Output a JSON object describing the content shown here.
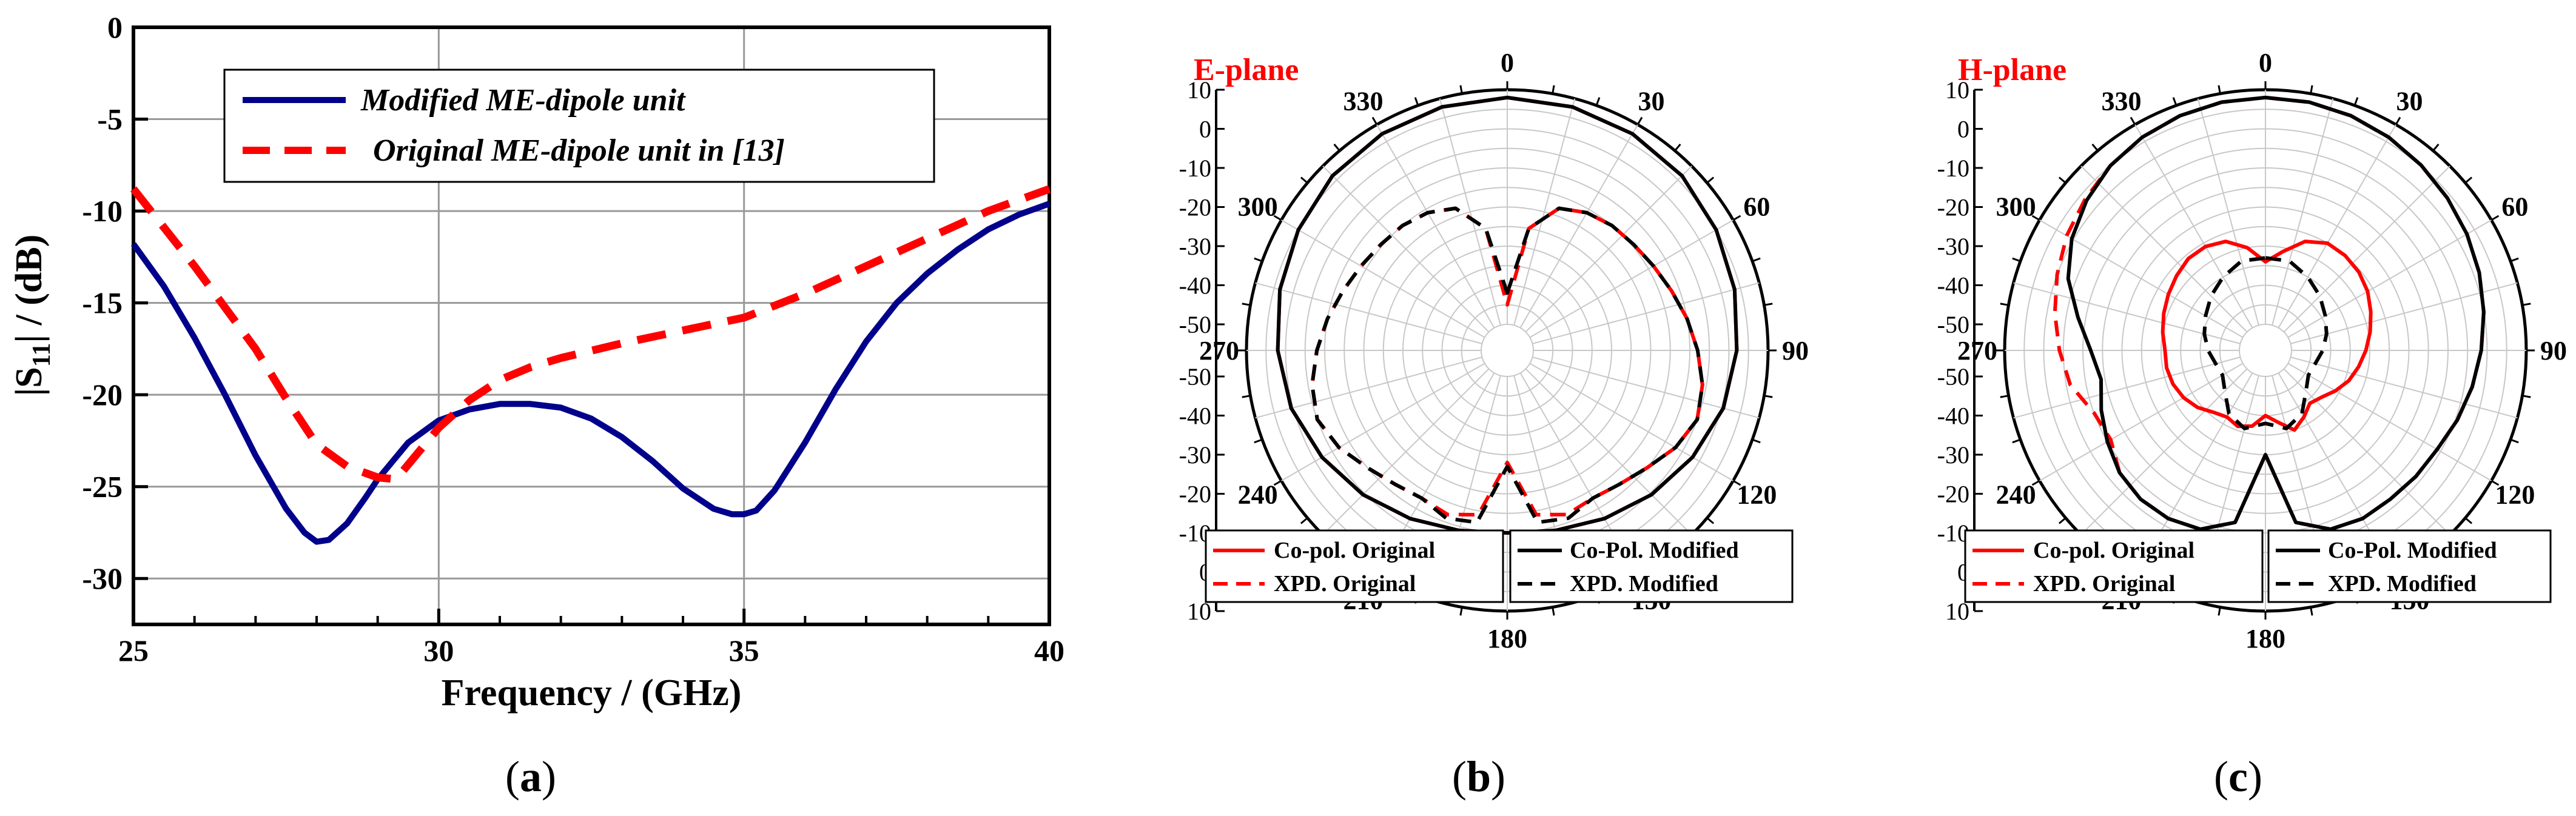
{
  "colors": {
    "modified": "#00008b",
    "original": "#ff0000",
    "copol_modified": "#000000",
    "grid": "#999999"
  },
  "chart_data": [
    {
      "type": "line",
      "id": "a",
      "caption": "a",
      "xlabel": "Frequency / (GHz)",
      "ylabel": "|S11| / (dB)",
      "ylabel_main": "|S",
      "ylabel_sub": "11",
      "ylabel_rest": "| / (dB)",
      "xlim": [
        25,
        40
      ],
      "ylim": [
        -32.5,
        0
      ],
      "xticks": [
        25,
        30,
        35,
        40
      ],
      "xtick_labels": [
        "25",
        "30",
        "35",
        "40"
      ],
      "yticks": [
        0,
        -5,
        -10,
        -15,
        -20,
        -25,
        -30
      ],
      "ytick_labels": [
        "0",
        "-5",
        "-10",
        "-15",
        "-20",
        "-25",
        "-30"
      ],
      "grid": true,
      "legend_position": "top-center",
      "series": [
        {
          "name": "Modified ME-dipole unit",
          "style": "solid",
          "x": [
            25,
            25.5,
            26,
            26.5,
            27,
            27.5,
            27.8,
            28.0,
            28.2,
            28.5,
            28.8,
            29.0,
            29.5,
            30.0,
            30.5,
            31.0,
            31.5,
            32.0,
            32.5,
            33.0,
            33.5,
            34.0,
            34.5,
            34.8,
            35.0,
            35.2,
            35.5,
            36.0,
            36.5,
            37.0,
            37.5,
            38.0,
            38.5,
            39.0,
            39.5,
            40.0
          ],
          "y": [
            -11.8,
            -14.1,
            -16.9,
            -20.0,
            -23.3,
            -26.2,
            -27.5,
            -28.0,
            -27.9,
            -27.0,
            -25.6,
            -24.6,
            -22.6,
            -21.4,
            -20.8,
            -20.5,
            -20.5,
            -20.7,
            -21.3,
            -22.3,
            -23.6,
            -25.1,
            -26.2,
            -26.5,
            -26.5,
            -26.3,
            -25.2,
            -22.6,
            -19.7,
            -17.1,
            -15.0,
            -13.4,
            -12.1,
            -11.0,
            -10.2,
            -9.6
          ]
        },
        {
          "name": "Original ME-dipole unit in [13]",
          "style": "dashed",
          "x": [
            25,
            26,
            27,
            27.5,
            28,
            28.5,
            29,
            29.3,
            29.7,
            30,
            30.5,
            31,
            31.5,
            32,
            33,
            34,
            35,
            36,
            37,
            38,
            39,
            40
          ],
          "y": [
            -8.8,
            -13.0,
            -17.5,
            -20.2,
            -22.7,
            -23.9,
            -24.5,
            -24.6,
            -23.0,
            -21.8,
            -20.3,
            -19.2,
            -18.5,
            -18.0,
            -17.2,
            -16.5,
            -15.8,
            -14.5,
            -13.0,
            -11.5,
            -10.0,
            -8.8
          ]
        }
      ]
    },
    {
      "type": "polar",
      "id": "b",
      "caption": "b",
      "title": "E-plane",
      "rlim": [
        -50,
        10
      ],
      "radial_ticks": [
        10,
        0,
        -10,
        -20,
        -30,
        -40,
        -50
      ],
      "radial_tick_labels": [
        "10",
        "0",
        "-10",
        "-20",
        "-30",
        "-40",
        "-50"
      ],
      "radial_ticks_lower": [
        -50,
        -40,
        -30,
        -20,
        -10,
        0,
        10
      ],
      "radial_tick_labels_lower": [
        "-50",
        "-40",
        "-30",
        "-20",
        "-10",
        "0",
        "10"
      ],
      "angle_ticks": [
        0,
        30,
        60,
        90,
        120,
        150,
        180,
        210,
        240,
        270,
        300,
        330
      ],
      "angle_tick_labels": [
        "0",
        "30",
        "60",
        "90",
        "120",
        "150",
        "180",
        "210",
        "240",
        "270",
        "300",
        "330"
      ],
      "legend": [
        "Co-pol. Original",
        "XPD. Original",
        "Co-Pol. Modified",
        "XPD. Modified"
      ],
      "series": [
        {
          "name": "Co-pol. Original",
          "style": "solid",
          "theta": [
            0,
            15,
            30,
            45,
            60,
            75,
            90,
            105,
            120,
            135,
            150,
            165,
            180,
            195,
            210,
            225,
            240,
            255,
            270,
            285,
            300,
            315,
            330,
            345,
            360
          ],
          "r": [
            8,
            7.8,
            7.3,
            6.5,
            5,
            3.5,
            2,
            0.5,
            -2,
            -4.5,
            -7,
            -9,
            -10,
            -9,
            -7,
            -4.5,
            -2,
            0.5,
            2,
            3.5,
            5,
            6.5,
            7.3,
            7.8,
            8
          ]
        },
        {
          "name": "XPD. Original",
          "style": "dashed",
          "theta": [
            0,
            10,
            20,
            30,
            40,
            50,
            60,
            70,
            80,
            90,
            100,
            110,
            120,
            130,
            140,
            150,
            160,
            170,
            180,
            190,
            200,
            210,
            220,
            230,
            240,
            250,
            260,
            270,
            280,
            290,
            300,
            310,
            320,
            330,
            340,
            350,
            360
          ],
          "r": [
            -45,
            -25,
            -18,
            -16,
            -15,
            -14.5,
            -13.5,
            -12,
            -10,
            -8,
            -6,
            -5,
            -7,
            -10,
            -12,
            -13,
            -12,
            -14,
            -28,
            -14,
            -12,
            -13,
            -12,
            -10,
            -7,
            -5,
            -6,
            -8,
            -10,
            -12,
            -13.5,
            -14.5,
            -15,
            -16,
            -18,
            -25,
            -45
          ]
        },
        {
          "name": "Co-Pol. Modified",
          "style": "solid",
          "theta": [
            0,
            15,
            30,
            45,
            60,
            75,
            90,
            105,
            120,
            135,
            150,
            165,
            180,
            195,
            210,
            225,
            240,
            255,
            270,
            285,
            300,
            315,
            330,
            345,
            360
          ],
          "r": [
            8,
            7.8,
            7.3,
            6.5,
            5,
            3.5,
            2,
            0.5,
            -2,
            -4.5,
            -7,
            -9,
            -10,
            -9,
            -7,
            -4.5,
            -2,
            0.5,
            2,
            3.5,
            5,
            6.5,
            7.3,
            7.8,
            8
          ]
        },
        {
          "name": "XPD. Modified",
          "style": "dashed",
          "theta": [
            0,
            10,
            20,
            30,
            40,
            50,
            60,
            70,
            80,
            90,
            100,
            110,
            120,
            130,
            140,
            150,
            160,
            170,
            180,
            190,
            200,
            210,
            220,
            230,
            240,
            250,
            260,
            270,
            280,
            290,
            300,
            310,
            320,
            330,
            340,
            350,
            360
          ],
          "r": [
            -42,
            -25,
            -18,
            -16,
            -15,
            -14.5,
            -13.5,
            -12,
            -10,
            -8,
            -6,
            -5,
            -7,
            -10,
            -12,
            -13,
            -11,
            -12,
            -27,
            -12,
            -11,
            -13,
            -12,
            -10,
            -7,
            -5,
            -6,
            -8,
            -10,
            -12,
            -13.5,
            -14.5,
            -15,
            -16,
            -18,
            -25,
            -42
          ]
        }
      ]
    },
    {
      "type": "polar",
      "id": "c",
      "caption": "c",
      "title": "H-plane",
      "rlim": [
        -50,
        10
      ],
      "radial_ticks": [
        10,
        0,
        -10,
        -20,
        -30,
        -40,
        -50
      ],
      "radial_tick_labels": [
        "10",
        "0",
        "-10",
        "-20",
        "-30",
        "-40",
        "-50"
      ],
      "radial_ticks_lower": [
        -50,
        -40,
        -30,
        -20,
        -10,
        0,
        10
      ],
      "radial_tick_labels_lower": [
        "-50",
        "-40",
        "-30",
        "-20",
        "-10",
        "0",
        "10"
      ],
      "angle_ticks": [
        0,
        30,
        60,
        90,
        120,
        150,
        180,
        210,
        240,
        270,
        300,
        330
      ],
      "angle_tick_labels": [
        "0",
        "30",
        "60",
        "90",
        "120",
        "150",
        "180",
        "210",
        "240",
        "270",
        "300",
        "330"
      ],
      "legend": [
        "Co-pol. Original",
        "XPD. Original",
        "Co-Pol. Modified",
        "XPD. Modified"
      ],
      "series": [
        {
          "name": "Co-pol. Original",
          "style": "solid",
          "theta": [
            0,
            10,
            20,
            30,
            40,
            50,
            60,
            70,
            80,
            90,
            100,
            110,
            120,
            130,
            140,
            150,
            160,
            170,
            180,
            190,
            200,
            210,
            220,
            230,
            240,
            250,
            260,
            270,
            280,
            290,
            300,
            310,
            320,
            330,
            340,
            350,
            360
          ],
          "r": [
            -34,
            -31,
            -27,
            -25,
            -25,
            -25.5,
            -26.5,
            -28,
            -29.5,
            -31,
            -32.5,
            -34,
            -36,
            -38,
            -39,
            -37,
            -35,
            -38,
            -40,
            -37,
            -36,
            -37,
            -36,
            -34,
            -32.5,
            -31.5,
            -31,
            -31,
            -30,
            -29,
            -28,
            -27,
            -26,
            -26,
            -27,
            -30,
            -34
          ]
        },
        {
          "name": "XPD. Original",
          "style": "dashed",
          "theta": [
            0,
            10,
            20,
            30,
            40,
            50,
            60,
            70,
            80,
            90,
            100,
            110,
            120,
            130,
            140,
            150,
            160,
            170,
            180,
            190,
            200,
            210,
            220,
            230,
            240,
            250,
            260,
            270,
            280,
            290,
            300,
            310,
            320,
            330,
            340,
            350,
            360
          ],
          "r": [
            8,
            7.8,
            7.2,
            6.3,
            5.2,
            4,
            2.8,
            1.5,
            0,
            -1.5,
            -3,
            -4.5,
            -6,
            -6.5,
            -7,
            -7,
            -8,
            -12,
            -30,
            -12,
            -8,
            -7,
            -7,
            -8,
            -11,
            -10,
            -6,
            -4,
            -2,
            0,
            2,
            3.5,
            5,
            6.3,
            7.2,
            7.8,
            8
          ]
        },
        {
          "name": "Co-Pol. Modified",
          "style": "solid",
          "theta": [
            0,
            10,
            20,
            30,
            40,
            50,
            60,
            70,
            80,
            90,
            100,
            110,
            120,
            130,
            140,
            150,
            160,
            170,
            180,
            190,
            200,
            210,
            220,
            230,
            240,
            250,
            260,
            270,
            280,
            290,
            300,
            310,
            320,
            330,
            340,
            350,
            360
          ],
          "r": [
            8,
            7.8,
            7.2,
            6.3,
            5.2,
            4,
            2.8,
            1.5,
            0,
            -1.5,
            -3,
            -4.5,
            -6,
            -6.5,
            -7,
            -7,
            -8,
            -12,
            -30,
            -12,
            -8,
            -7,
            -7,
            -8,
            -10,
            -12,
            -14,
            -12,
            -8,
            -3,
            0.5,
            3,
            5,
            6.3,
            7.2,
            7.8,
            8
          ]
        },
        {
          "name": "XPD. Modified",
          "style": "dashed",
          "theta": [
            0,
            15,
            30,
            45,
            60,
            75,
            90,
            105,
            120,
            135,
            150,
            165,
            180,
            195,
            210,
            225,
            240,
            255,
            270,
            285,
            300,
            315,
            330,
            345,
            360
          ],
          "r": [
            -33,
            -33,
            -35,
            -37,
            -39,
            -40.5,
            -42,
            -43.5,
            -44,
            -42,
            -38,
            -36,
            -38,
            -36,
            -38,
            -42,
            -44,
            -43.5,
            -42,
            -40.5,
            -39,
            -37,
            -35,
            -33,
            -33
          ]
        }
      ]
    }
  ]
}
